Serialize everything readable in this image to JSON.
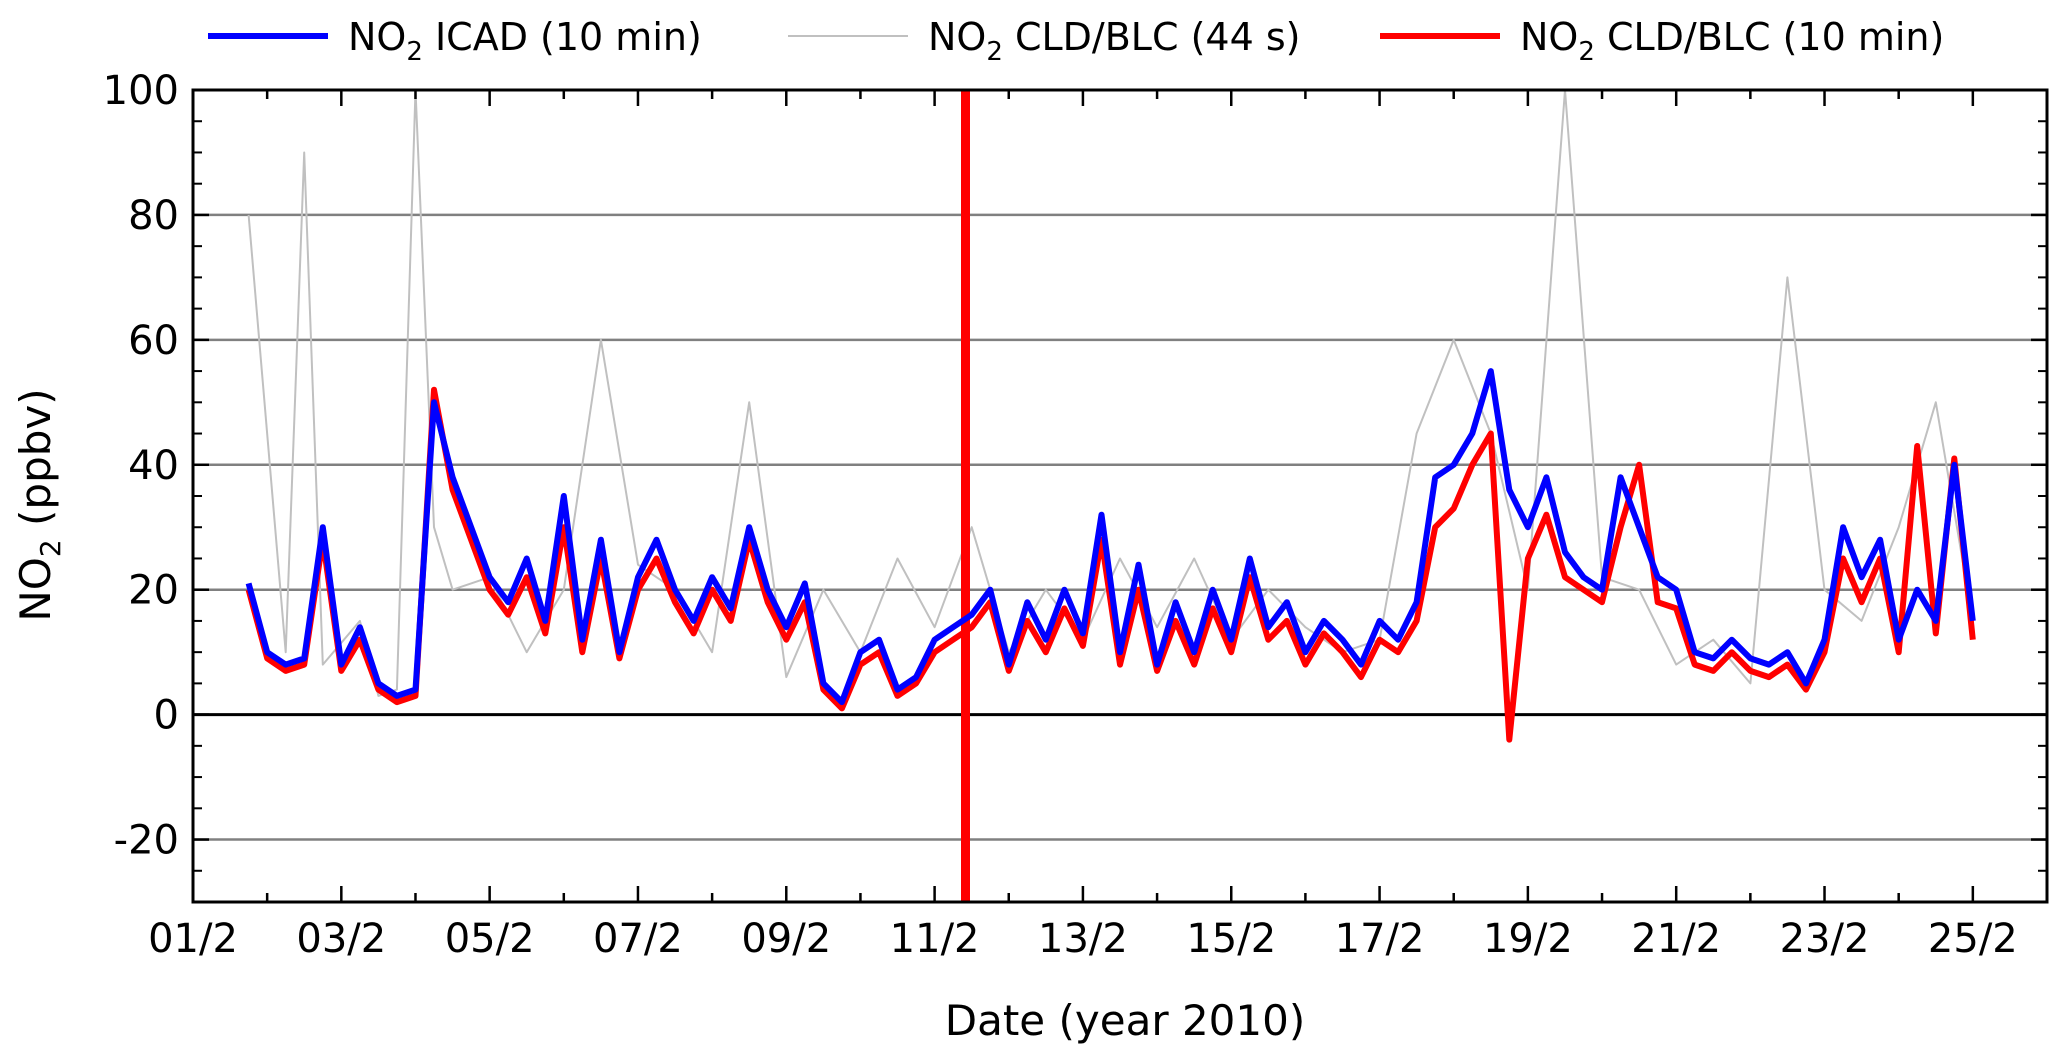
{
  "chart_data": {
    "type": "line",
    "xlabel": "Date (year 2010)",
    "ylabel": {
      "base": "NO",
      "sub": "2",
      "rest": " (ppbv)"
    },
    "ylim": [
      -30,
      100
    ],
    "xlim": [
      "2010-02-01",
      "2010-02-26"
    ],
    "yticks": [
      -20,
      0,
      20,
      40,
      60,
      80,
      100
    ],
    "xticks": [
      "01/2",
      "03/2",
      "05/2",
      "07/2",
      "09/2",
      "11/2",
      "13/2",
      "15/2",
      "17/2",
      "19/2",
      "21/2",
      "23/2",
      "25/2"
    ],
    "grid": true,
    "legend_position": "top",
    "series": [
      {
        "name": {
          "base": "NO",
          "sub": "2",
          "rest": " ICAD (10 min)"
        },
        "color": "#0000ff",
        "x": [
          "2010-02-01T18:00",
          "2010-02-02T00:00",
          "2010-02-02T06:00",
          "2010-02-02T12:00",
          "2010-02-02T18:00",
          "2010-02-03T00:00",
          "2010-02-03T06:00",
          "2010-02-03T12:00",
          "2010-02-03T18:00",
          "2010-02-04T00:00",
          "2010-02-04T06:00",
          "2010-02-04T12:00",
          "2010-02-04T18:00",
          "2010-02-05T00:00",
          "2010-02-05T06:00",
          "2010-02-05T12:00",
          "2010-02-05T18:00",
          "2010-02-06T00:00",
          "2010-02-06T06:00",
          "2010-02-06T12:00",
          "2010-02-06T18:00",
          "2010-02-07T00:00",
          "2010-02-07T06:00",
          "2010-02-07T12:00",
          "2010-02-07T18:00",
          "2010-02-08T00:00",
          "2010-02-08T06:00",
          "2010-02-08T12:00",
          "2010-02-08T18:00",
          "2010-02-09T00:00",
          "2010-02-09T06:00",
          "2010-02-09T12:00",
          "2010-02-09T18:00",
          "2010-02-10T00:00",
          "2010-02-10T06:00",
          "2010-02-10T12:00",
          "2010-02-10T18:00",
          "2010-02-11T00:00",
          "2010-02-11T06:00",
          "2010-02-11T12:00",
          "2010-02-11T18:00",
          "2010-02-12T00:00",
          "2010-02-12T06:00",
          "2010-02-12T12:00",
          "2010-02-12T18:00",
          "2010-02-13T00:00",
          "2010-02-13T06:00",
          "2010-02-13T12:00",
          "2010-02-13T18:00",
          "2010-02-14T00:00",
          "2010-02-14T06:00",
          "2010-02-14T12:00",
          "2010-02-14T18:00",
          "2010-02-15T00:00",
          "2010-02-15T06:00",
          "2010-02-15T12:00",
          "2010-02-15T18:00",
          "2010-02-16T00:00",
          "2010-02-16T06:00",
          "2010-02-16T12:00",
          "2010-02-16T18:00",
          "2010-02-17T00:00",
          "2010-02-17T06:00",
          "2010-02-17T12:00",
          "2010-02-17T18:00",
          "2010-02-18T00:00",
          "2010-02-18T06:00",
          "2010-02-18T12:00",
          "2010-02-18T18:00",
          "2010-02-19T00:00",
          "2010-02-19T06:00",
          "2010-02-19T12:00",
          "2010-02-19T18:00",
          "2010-02-20T00:00",
          "2010-02-20T06:00",
          "2010-02-20T12:00",
          "2010-02-20T18:00",
          "2010-02-21T00:00",
          "2010-02-21T06:00",
          "2010-02-21T12:00",
          "2010-02-21T18:00",
          "2010-02-22T00:00",
          "2010-02-22T06:00",
          "2010-02-22T12:00",
          "2010-02-22T18:00",
          "2010-02-23T00:00",
          "2010-02-23T06:00",
          "2010-02-23T12:00",
          "2010-02-23T18:00",
          "2010-02-24T00:00",
          "2010-02-24T06:00",
          "2010-02-24T12:00",
          "2010-02-24T18:00",
          "2010-02-25T00:00"
        ],
        "y": [
          21,
          10,
          8,
          9,
          30,
          8,
          14,
          5,
          3,
          4,
          50,
          38,
          30,
          22,
          18,
          25,
          15,
          35,
          12,
          28,
          10,
          22,
          28,
          20,
          15,
          22,
          17,
          30,
          20,
          14,
          21,
          5,
          2,
          10,
          12,
          4,
          6,
          12,
          14,
          16,
          20,
          8,
          18,
          12,
          20,
          13,
          32,
          10,
          24,
          8,
          18,
          10,
          20,
          12,
          25,
          14,
          18,
          10,
          15,
          12,
          8,
          15,
          12,
          18,
          38,
          40,
          45,
          55,
          36,
          30,
          38,
          26,
          22,
          20,
          38,
          30,
          22,
          20,
          10,
          9,
          12,
          9,
          8,
          10,
          5,
          12,
          30,
          22,
          28,
          12,
          20,
          15,
          40,
          15
        ],
        "line_width": 6
      },
      {
        "name": {
          "base": "NO",
          "sub": "2",
          "rest": " CLD/BLC (44 s)"
        },
        "color": "#c0c0c0",
        "x": [
          "2010-02-01T18:00",
          "2010-02-02T06:00",
          "2010-02-02T12:00",
          "2010-02-02T18:00",
          "2010-02-03T06:00",
          "2010-02-03T12:00",
          "2010-02-03T18:00",
          "2010-02-04T00:00",
          "2010-02-04T06:00",
          "2010-02-04T12:00",
          "2010-02-05T00:00",
          "2010-02-05T12:00",
          "2010-02-06T00:00",
          "2010-02-06T12:00",
          "2010-02-07T00:00",
          "2010-02-07T12:00",
          "2010-02-08T00:00",
          "2010-02-08T12:00",
          "2010-02-09T00:00",
          "2010-02-09T12:00",
          "2010-02-10T00:00",
          "2010-02-10T12:00",
          "2010-02-11T00:00",
          "2010-02-11T12:00",
          "2010-02-12T00:00",
          "2010-02-12T12:00",
          "2010-02-13T00:00",
          "2010-02-13T12:00",
          "2010-02-14T00:00",
          "2010-02-14T12:00",
          "2010-02-15T00:00",
          "2010-02-15T12:00",
          "2010-02-16T00:00",
          "2010-02-16T12:00",
          "2010-02-17T00:00",
          "2010-02-17T12:00",
          "2010-02-18T00:00",
          "2010-02-18T12:00",
          "2010-02-19T00:00",
          "2010-02-19T12:00",
          "2010-02-20T00:00",
          "2010-02-20T12:00",
          "2010-02-21T00:00",
          "2010-02-21T12:00",
          "2010-02-22T00:00",
          "2010-02-22T12:00",
          "2010-02-23T00:00",
          "2010-02-23T12:00",
          "2010-02-24T00:00",
          "2010-02-24T12:00",
          "2010-02-25T00:00"
        ],
        "y": [
          80,
          10,
          90,
          8,
          15,
          3,
          4,
          100,
          30,
          20,
          22,
          10,
          20,
          60,
          24,
          20,
          10,
          50,
          6,
          20,
          10,
          25,
          14,
          30,
          10,
          20,
          12,
          25,
          14,
          25,
          12,
          20,
          14,
          10,
          12,
          45,
          60,
          45,
          20,
          100,
          22,
          20,
          8,
          12,
          5,
          70,
          20,
          15,
          30,
          50,
          15
        ],
        "line_width": 2
      },
      {
        "name": {
          "base": "NO",
          "sub": "2",
          "rest": " CLD/BLC (10 min)"
        },
        "color": "#ff0000",
        "x": [
          "2010-02-01T18:00",
          "2010-02-02T00:00",
          "2010-02-02T06:00",
          "2010-02-02T12:00",
          "2010-02-02T18:00",
          "2010-02-03T00:00",
          "2010-02-03T06:00",
          "2010-02-03T12:00",
          "2010-02-03T18:00",
          "2010-02-04T00:00",
          "2010-02-04T06:00",
          "2010-02-04T12:00",
          "2010-02-04T18:00",
          "2010-02-05T00:00",
          "2010-02-05T06:00",
          "2010-02-05T12:00",
          "2010-02-05T18:00",
          "2010-02-06T00:00",
          "2010-02-06T06:00",
          "2010-02-06T12:00",
          "2010-02-06T18:00",
          "2010-02-07T00:00",
          "2010-02-07T06:00",
          "2010-02-07T12:00",
          "2010-02-07T18:00",
          "2010-02-08T00:00",
          "2010-02-08T06:00",
          "2010-02-08T12:00",
          "2010-02-08T18:00",
          "2010-02-09T00:00",
          "2010-02-09T06:00",
          "2010-02-09T12:00",
          "2010-02-09T18:00",
          "2010-02-10T00:00",
          "2010-02-10T06:00",
          "2010-02-10T12:00",
          "2010-02-10T18:00",
          "2010-02-11T00:00",
          "2010-02-11T06:00",
          "2010-02-11T12:00",
          "2010-02-11T18:00",
          "2010-02-12T00:00",
          "2010-02-12T06:00",
          "2010-02-12T12:00",
          "2010-02-12T18:00",
          "2010-02-13T00:00",
          "2010-02-13T06:00",
          "2010-02-13T12:00",
          "2010-02-13T18:00",
          "2010-02-14T00:00",
          "2010-02-14T06:00",
          "2010-02-14T12:00",
          "2010-02-14T18:00",
          "2010-02-15T00:00",
          "2010-02-15T06:00",
          "2010-02-15T12:00",
          "2010-02-15T18:00",
          "2010-02-16T00:00",
          "2010-02-16T06:00",
          "2010-02-16T12:00",
          "2010-02-16T18:00",
          "2010-02-17T00:00",
          "2010-02-17T06:00",
          "2010-02-17T12:00",
          "2010-02-17T18:00",
          "2010-02-18T00:00",
          "2010-02-18T06:00",
          "2010-02-18T12:00",
          "2010-02-18T18:00",
          "2010-02-19T00:00",
          "2010-02-19T06:00",
          "2010-02-19T12:00",
          "2010-02-19T18:00",
          "2010-02-20T00:00",
          "2010-02-20T06:00",
          "2010-02-20T12:00",
          "2010-02-20T18:00",
          "2010-02-21T00:00",
          "2010-02-21T06:00",
          "2010-02-21T12:00",
          "2010-02-21T18:00",
          "2010-02-22T00:00",
          "2010-02-22T06:00",
          "2010-02-22T12:00",
          "2010-02-22T18:00",
          "2010-02-23T00:00",
          "2010-02-23T06:00",
          "2010-02-23T12:00",
          "2010-02-23T18:00",
          "2010-02-24T00:00",
          "2010-02-24T06:00",
          "2010-02-24T12:00",
          "2010-02-24T18:00",
          "2010-02-25T00:00"
        ],
        "y": [
          20,
          9,
          7,
          8,
          28,
          7,
          12,
          4,
          2,
          3,
          52,
          36,
          28,
          20,
          16,
          22,
          13,
          30,
          10,
          25,
          9,
          20,
          25,
          18,
          13,
          20,
          15,
          28,
          18,
          12,
          18,
          4,
          1,
          8,
          10,
          3,
          5,
          10,
          12,
          14,
          18,
          7,
          15,
          10,
          17,
          11,
          28,
          8,
          20,
          7,
          15,
          8,
          17,
          10,
          22,
          12,
          15,
          8,
          13,
          10,
          6,
          12,
          10,
          15,
          30,
          33,
          40,
          45,
          -4,
          25,
          32,
          22,
          20,
          18,
          30,
          40,
          18,
          17,
          8,
          7,
          10,
          7,
          6,
          8,
          4,
          10,
          25,
          18,
          25,
          10,
          43,
          13,
          41,
          12
        ],
        "spike": {
          "x": "2010-02-11T10:00",
          "y_min": -30,
          "y_max": 100
        },
        "line_width": 6
      }
    ]
  }
}
